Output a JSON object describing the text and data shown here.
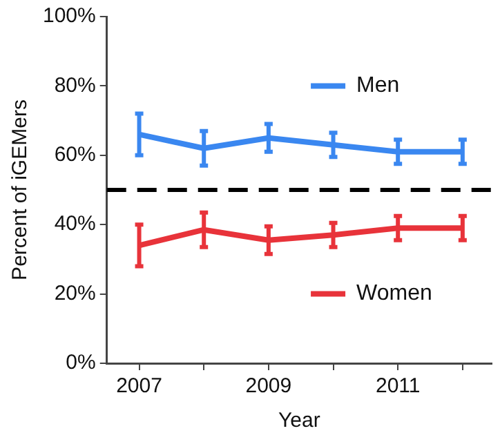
{
  "chart_data": {
    "type": "line",
    "xlabel": "Year",
    "ylabel": "Percent of iGEMers",
    "x": [
      2007,
      2008,
      2009,
      2010,
      2011,
      2012
    ],
    "series": [
      {
        "name": "Men",
        "color": "#3a87f0",
        "values": [
          66,
          62,
          65,
          63,
          61,
          61
        ],
        "errors": [
          6,
          5,
          4,
          3.5,
          3.5,
          3.5
        ]
      },
      {
        "name": "Women",
        "color": "#e8333a",
        "values": [
          34,
          38.5,
          35.5,
          37,
          39,
          39
        ],
        "errors": [
          6,
          5,
          4,
          3.5,
          3.5,
          3.5
        ]
      }
    ],
    "xlim": [
      2006.5,
      2012.45
    ],
    "xticks": [
      2007,
      {
        "value": 2008,
        "label": null
      },
      2009,
      {
        "value": 2010,
        "label": null
      },
      2011,
      {
        "value": 2012,
        "label": null
      }
    ],
    "ylim": [
      0,
      100
    ],
    "yticks": [
      {
        "value": 0,
        "label": "0%"
      },
      {
        "value": 20,
        "label": "20%"
      },
      {
        "value": 40,
        "label": "40%"
      },
      {
        "value": 60,
        "label": "60%"
      },
      {
        "value": 80,
        "label": "80%"
      },
      {
        "value": 100,
        "label": "100%"
      }
    ],
    "ref_lines": [
      {
        "axis": "y",
        "value": 50,
        "color": "#000000",
        "line_style": "dashed"
      }
    ],
    "grid": false,
    "legend": "right",
    "marker": "none",
    "line_style": "solid"
  }
}
